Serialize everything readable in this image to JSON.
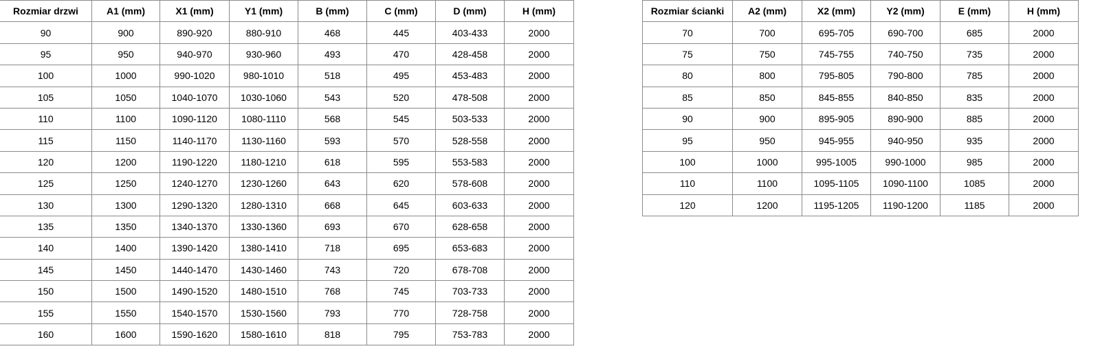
{
  "doors_table": {
    "headers": [
      "Rozmiar drzwi",
      "A1 (mm)",
      "X1 (mm)",
      "Y1 (mm)",
      "B (mm)",
      "C (mm)",
      "D (mm)",
      "H (mm)"
    ],
    "rows": [
      [
        "90",
        "900",
        "890-920",
        "880-910",
        "468",
        "445",
        "403-433",
        "2000"
      ],
      [
        "95",
        "950",
        "940-970",
        "930-960",
        "493",
        "470",
        "428-458",
        "2000"
      ],
      [
        "100",
        "1000",
        "990-1020",
        "980-1010",
        "518",
        "495",
        "453-483",
        "2000"
      ],
      [
        "105",
        "1050",
        "1040-1070",
        "1030-1060",
        "543",
        "520",
        "478-508",
        "2000"
      ],
      [
        "110",
        "1100",
        "1090-1120",
        "1080-1110",
        "568",
        "545",
        "503-533",
        "2000"
      ],
      [
        "115",
        "1150",
        "1140-1170",
        "1130-1160",
        "593",
        "570",
        "528-558",
        "2000"
      ],
      [
        "120",
        "1200",
        "1190-1220",
        "1180-1210",
        "618",
        "595",
        "553-583",
        "2000"
      ],
      [
        "125",
        "1250",
        "1240-1270",
        "1230-1260",
        "643",
        "620",
        "578-608",
        "2000"
      ],
      [
        "130",
        "1300",
        "1290-1320",
        "1280-1310",
        "668",
        "645",
        "603-633",
        "2000"
      ],
      [
        "135",
        "1350",
        "1340-1370",
        "1330-1360",
        "693",
        "670",
        "628-658",
        "2000"
      ],
      [
        "140",
        "1400",
        "1390-1420",
        "1380-1410",
        "718",
        "695",
        "653-683",
        "2000"
      ],
      [
        "145",
        "1450",
        "1440-1470",
        "1430-1460",
        "743",
        "720",
        "678-708",
        "2000"
      ],
      [
        "150",
        "1500",
        "1490-1520",
        "1480-1510",
        "768",
        "745",
        "703-733",
        "2000"
      ],
      [
        "155",
        "1550",
        "1540-1570",
        "1530-1560",
        "793",
        "770",
        "728-758",
        "2000"
      ],
      [
        "160",
        "1600",
        "1590-1620",
        "1580-1610",
        "818",
        "795",
        "753-783",
        "2000"
      ]
    ]
  },
  "wall_table": {
    "headers": [
      "Rozmiar ścianki",
      "A2 (mm)",
      "X2 (mm)",
      "Y2 (mm)",
      "E (mm)",
      "H (mm)"
    ],
    "rows": [
      [
        "70",
        "700",
        "695-705",
        "690-700",
        "685",
        "2000"
      ],
      [
        "75",
        "750",
        "745-755",
        "740-750",
        "735",
        "2000"
      ],
      [
        "80",
        "800",
        "795-805",
        "790-800",
        "785",
        "2000"
      ],
      [
        "85",
        "850",
        "845-855",
        "840-850",
        "835",
        "2000"
      ],
      [
        "90",
        "900",
        "895-905",
        "890-900",
        "885",
        "2000"
      ],
      [
        "95",
        "950",
        "945-955",
        "940-950",
        "935",
        "2000"
      ],
      [
        "100",
        "1000",
        "995-1005",
        "990-1000",
        "985",
        "2000"
      ],
      [
        "110",
        "1100",
        "1095-1105",
        "1090-1100",
        "1085",
        "2000"
      ],
      [
        "120",
        "1200",
        "1195-1205",
        "1190-1200",
        "1185",
        "2000"
      ]
    ]
  }
}
